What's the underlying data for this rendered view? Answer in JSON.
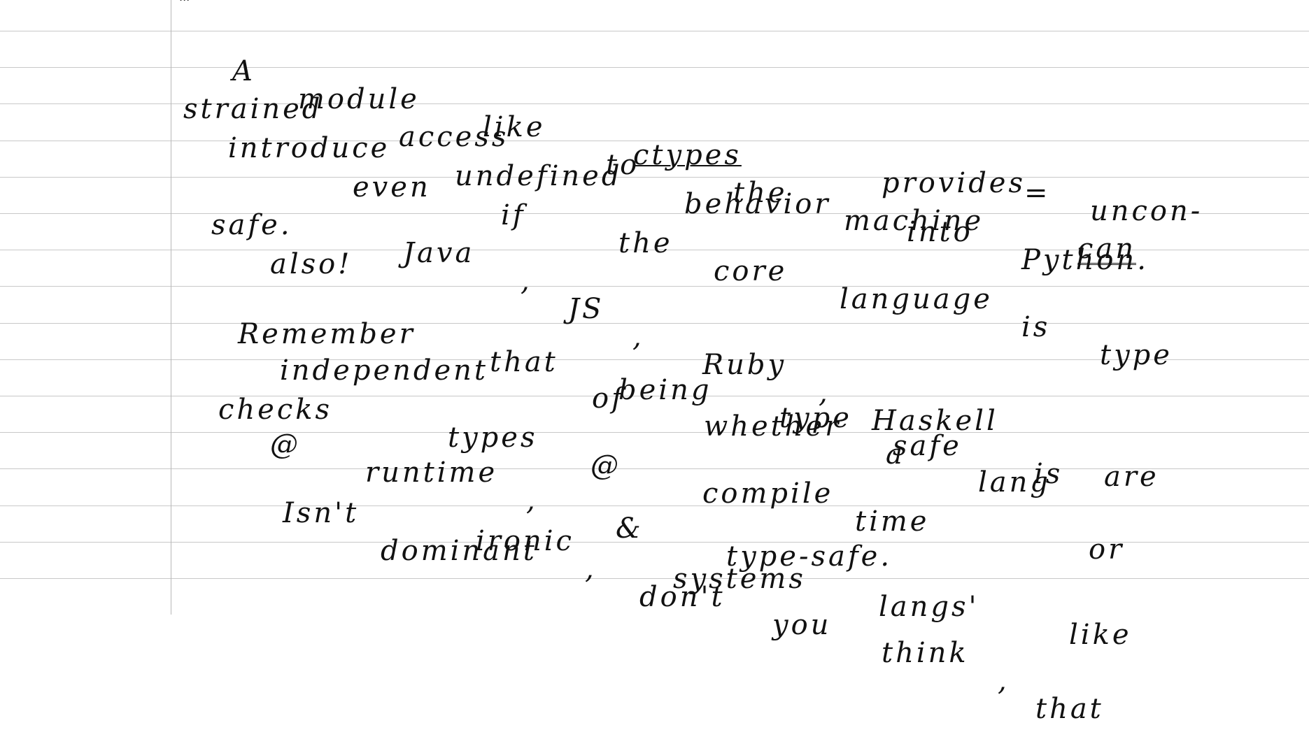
{
  "top_mark": "...",
  "lines": [
    [
      "A",
      "module",
      "like",
      "ctypes",
      "provides",
      "uncon-"
    ],
    [
      "strained",
      "access",
      "to",
      "the",
      "machine",
      "can"
    ],
    [
      "introduce",
      "undefined",
      "behavior",
      "into",
      "Python."
    ],
    [
      "even",
      "if",
      "the",
      "core",
      "language",
      "is",
      "type"
    ],
    [
      "safe.",
      "Java",
      ",",
      "JS",
      ",",
      "Ruby",
      ",",
      "Haskell",
      "=",
      "are"
    ],
    [
      "also!"
    ],
    [
      "Remember",
      "that",
      "being",
      "type",
      "safe",
      "is"
    ],
    [
      "independent",
      "of",
      "whether",
      "a",
      "lang"
    ],
    [
      "checks",
      "types",
      "@",
      "compile",
      "time",
      "or"
    ],
    [
      "@",
      "runtime",
      ",",
      "&",
      "type-safe."
    ],
    [
      "Isn't",
      "ironic",
      ",",
      "don't",
      "you",
      "think",
      ",",
      "that"
    ],
    [
      "dominant",
      "systems",
      "langs'",
      "like"
    ]
  ]
}
